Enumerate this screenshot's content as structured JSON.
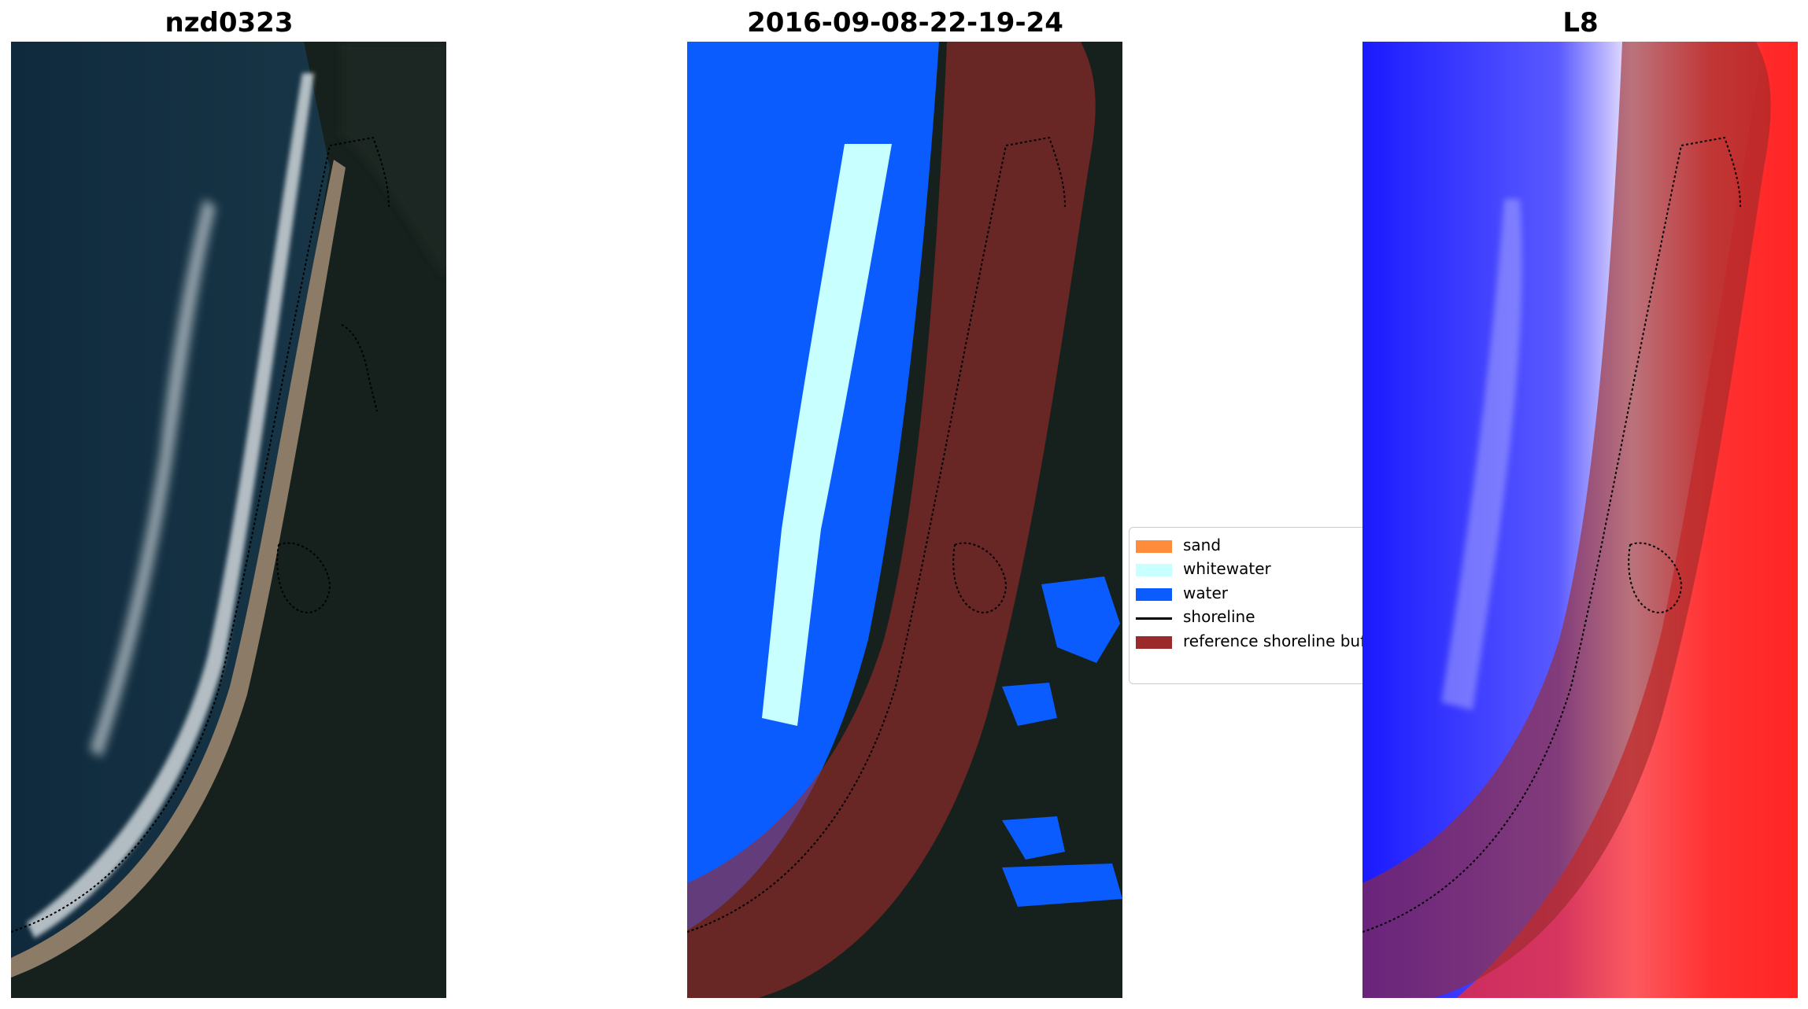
{
  "titles": {
    "site": "nzd0323",
    "date": "2016-09-08-22-19-24",
    "satellite": "L8"
  },
  "legend": {
    "items": [
      {
        "label": "sand",
        "color": "#ff8c3a",
        "kind": "patch"
      },
      {
        "label": "whitewater",
        "color": "#c8ffff",
        "kind": "patch"
      },
      {
        "label": "water",
        "color": "#0a5cff",
        "kind": "patch"
      },
      {
        "label": "shoreline",
        "color": "#000000",
        "kind": "line"
      },
      {
        "label": "reference shoreline buffer",
        "color": "#9b2a2a",
        "kind": "patch"
      }
    ]
  },
  "colors": {
    "ocean": "#10293a",
    "land": "#15201d",
    "sand_beach": "#8a7a66",
    "surf": "#d7dde0",
    "class_water": "#0a5cff",
    "class_whitewater": "#c8ffff",
    "buffer": "#9b2a2a",
    "index_low": "#1a1aff",
    "index_high": "#ff1a1a"
  }
}
